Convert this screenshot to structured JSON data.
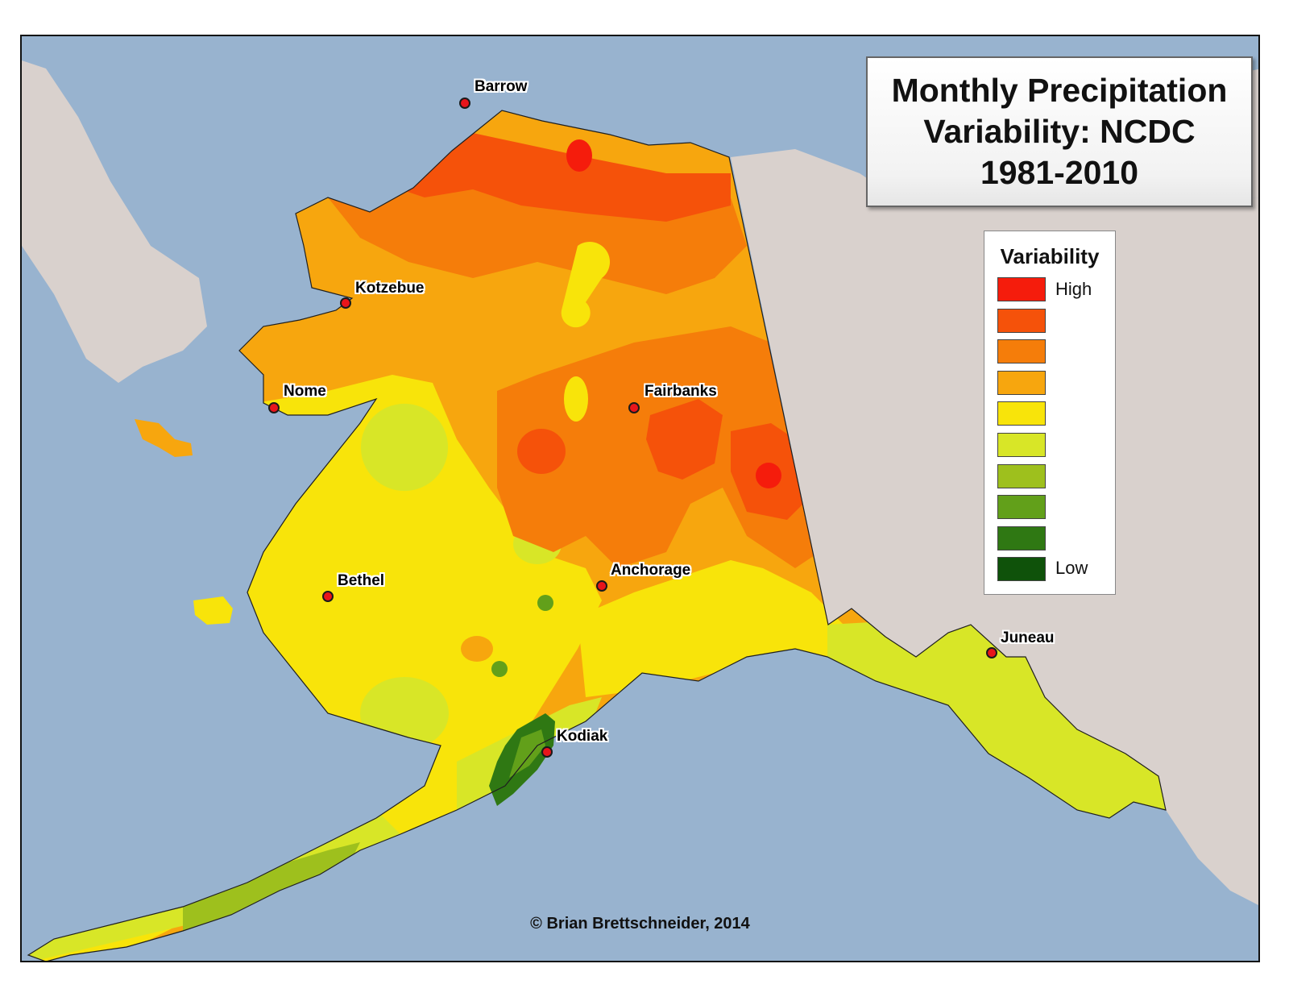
{
  "title": {
    "lines": [
      "Monthly Precipitation",
      "Variability: NCDC",
      "1981-2010"
    ]
  },
  "legend": {
    "title": "Variability",
    "high_label": "High",
    "low_label": "Low",
    "colors": [
      "#f51c0c",
      "#f5520a",
      "#f57d0a",
      "#f7a60e",
      "#f8e40a",
      "#d8e627",
      "#9ec01d",
      "#62a01a",
      "#2f7813",
      "#0f520a"
    ]
  },
  "cities": [
    {
      "name": "Barrow"
    },
    {
      "name": "Kotzebue"
    },
    {
      "name": "Nome"
    },
    {
      "name": "Fairbanks"
    },
    {
      "name": "Bethel"
    },
    {
      "name": "Anchorage"
    },
    {
      "name": "Juneau"
    },
    {
      "name": "Kodiak"
    }
  ],
  "credit": "© Brian Brettschneider, 2014",
  "colors": {
    "ocean": "#98b3cf",
    "land_outside": "#d9d1cd",
    "city_marker": "#e8151b"
  }
}
